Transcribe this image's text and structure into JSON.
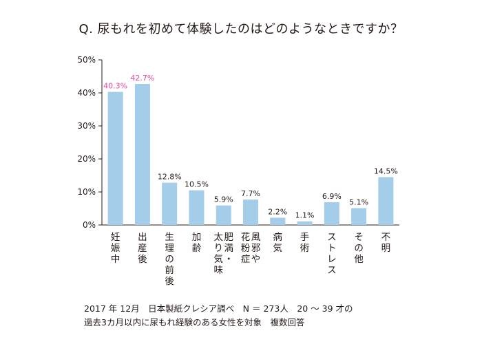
{
  "chart_data": {
    "type": "bar",
    "title": "Q. 尿もれを初めて体験したのはどのようなときですか？",
    "categories": [
      "妊娠中",
      "出産後",
      "生理の前後",
      "加齢",
      "肥満・太り気味",
      "風邪や花粉症",
      "病気",
      "手術",
      "ストレス",
      "その他",
      "不明"
    ],
    "category_lines": [
      [
        "妊娠中"
      ],
      [
        "出産後"
      ],
      [
        "生理の前後"
      ],
      [
        "加齢"
      ],
      [
        "肥満・",
        "太り気味"
      ],
      [
        "風邪や",
        "花粉症"
      ],
      [
        "病気"
      ],
      [
        "手術"
      ],
      [
        "ストレス"
      ],
      [
        "その他"
      ],
      [
        "不明"
      ]
    ],
    "values": [
      40.3,
      42.7,
      12.8,
      10.5,
      5.9,
      7.7,
      2.2,
      1.1,
      6.9,
      5.1,
      14.5
    ],
    "value_labels": [
      "40.3%",
      "42.7%",
      "12.8%",
      "10.5%",
      "5.9%",
      "7.7%",
      "2.2%",
      "1.1%",
      "6.9%",
      "5.1%",
      "14.5%"
    ],
    "highlighted": [
      0,
      1
    ],
    "ylim": [
      0,
      50
    ],
    "yticks": [
      0,
      10,
      20,
      30,
      40,
      50
    ],
    "ytick_labels": [
      "0%",
      "10%",
      "20%",
      "30%",
      "40%",
      "50%"
    ],
    "grid": false,
    "xlabel": "",
    "ylabel": "",
    "colors": {
      "bar": "#a3cde9",
      "label": "#231815",
      "highlight_label": "#e4479a",
      "axis": "#231815"
    }
  },
  "notes": {
    "line1": "2017 年 12月　日本製紙クレシア調べ　N ＝ 273人　20 〜 39 才の",
    "line2": "過去3カ月以内に尿もれ経験のある女性を対象　複数回答"
  }
}
